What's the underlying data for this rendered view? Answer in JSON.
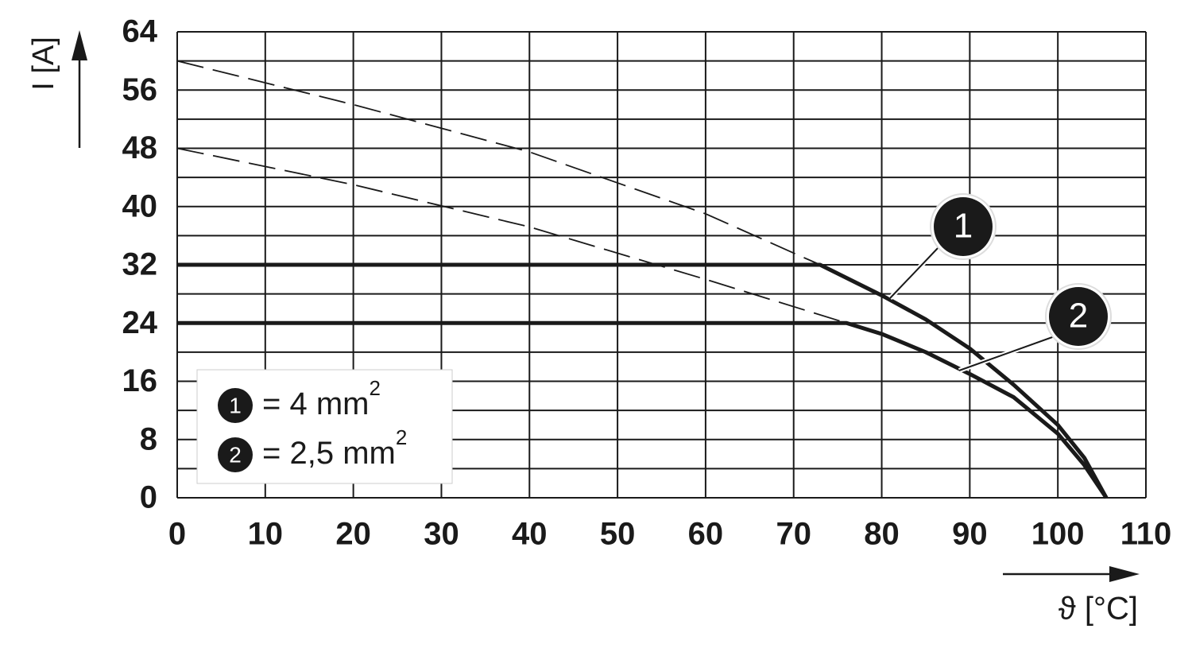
{
  "chart_data": {
    "type": "line",
    "x_label": "ϑ [°C]",
    "y_label": "I [A]",
    "xlim": [
      0,
      110
    ],
    "xticks": [
      0,
      10,
      20,
      30,
      40,
      50,
      60,
      70,
      80,
      90,
      100,
      110
    ],
    "ylim": [
      0,
      64
    ],
    "yticks": [
      0,
      8,
      16,
      24,
      32,
      40,
      48,
      56,
      64
    ],
    "ygrid": [
      0,
      4,
      8,
      12,
      16,
      20,
      24,
      28,
      32,
      36,
      40,
      44,
      48,
      52,
      56,
      60,
      64
    ],
    "grid": true,
    "series": [
      {
        "name": "1",
        "label": "= 4 mm",
        "exponent": "2",
        "color": "#1a1a1a",
        "x": [
          0,
          73,
          80,
          85,
          90,
          95,
          100,
          103,
          105.5
        ],
        "values": [
          32,
          32,
          27.8,
          24.5,
          20.5,
          15.5,
          10,
          5.5,
          0
        ]
      },
      {
        "name": "2",
        "label": "= 2,5 mm",
        "exponent": "2",
        "color": "#1a1a1a",
        "x": [
          0,
          76,
          80,
          85,
          90,
          95,
          100,
          103,
          105.5
        ],
        "values": [
          24,
          24,
          22.5,
          20,
          17,
          13.8,
          8.8,
          4.5,
          0
        ]
      }
    ],
    "dashed_series": [
      {
        "color": "#1a1a1a",
        "x": [
          0,
          20,
          40,
          60,
          73
        ],
        "values": [
          60,
          54,
          47.5,
          39,
          32
        ]
      },
      {
        "color": "#1a1a1a",
        "x": [
          0,
          20,
          40,
          60,
          76
        ],
        "values": [
          48,
          43,
          37.2,
          30,
          24
        ]
      }
    ]
  }
}
